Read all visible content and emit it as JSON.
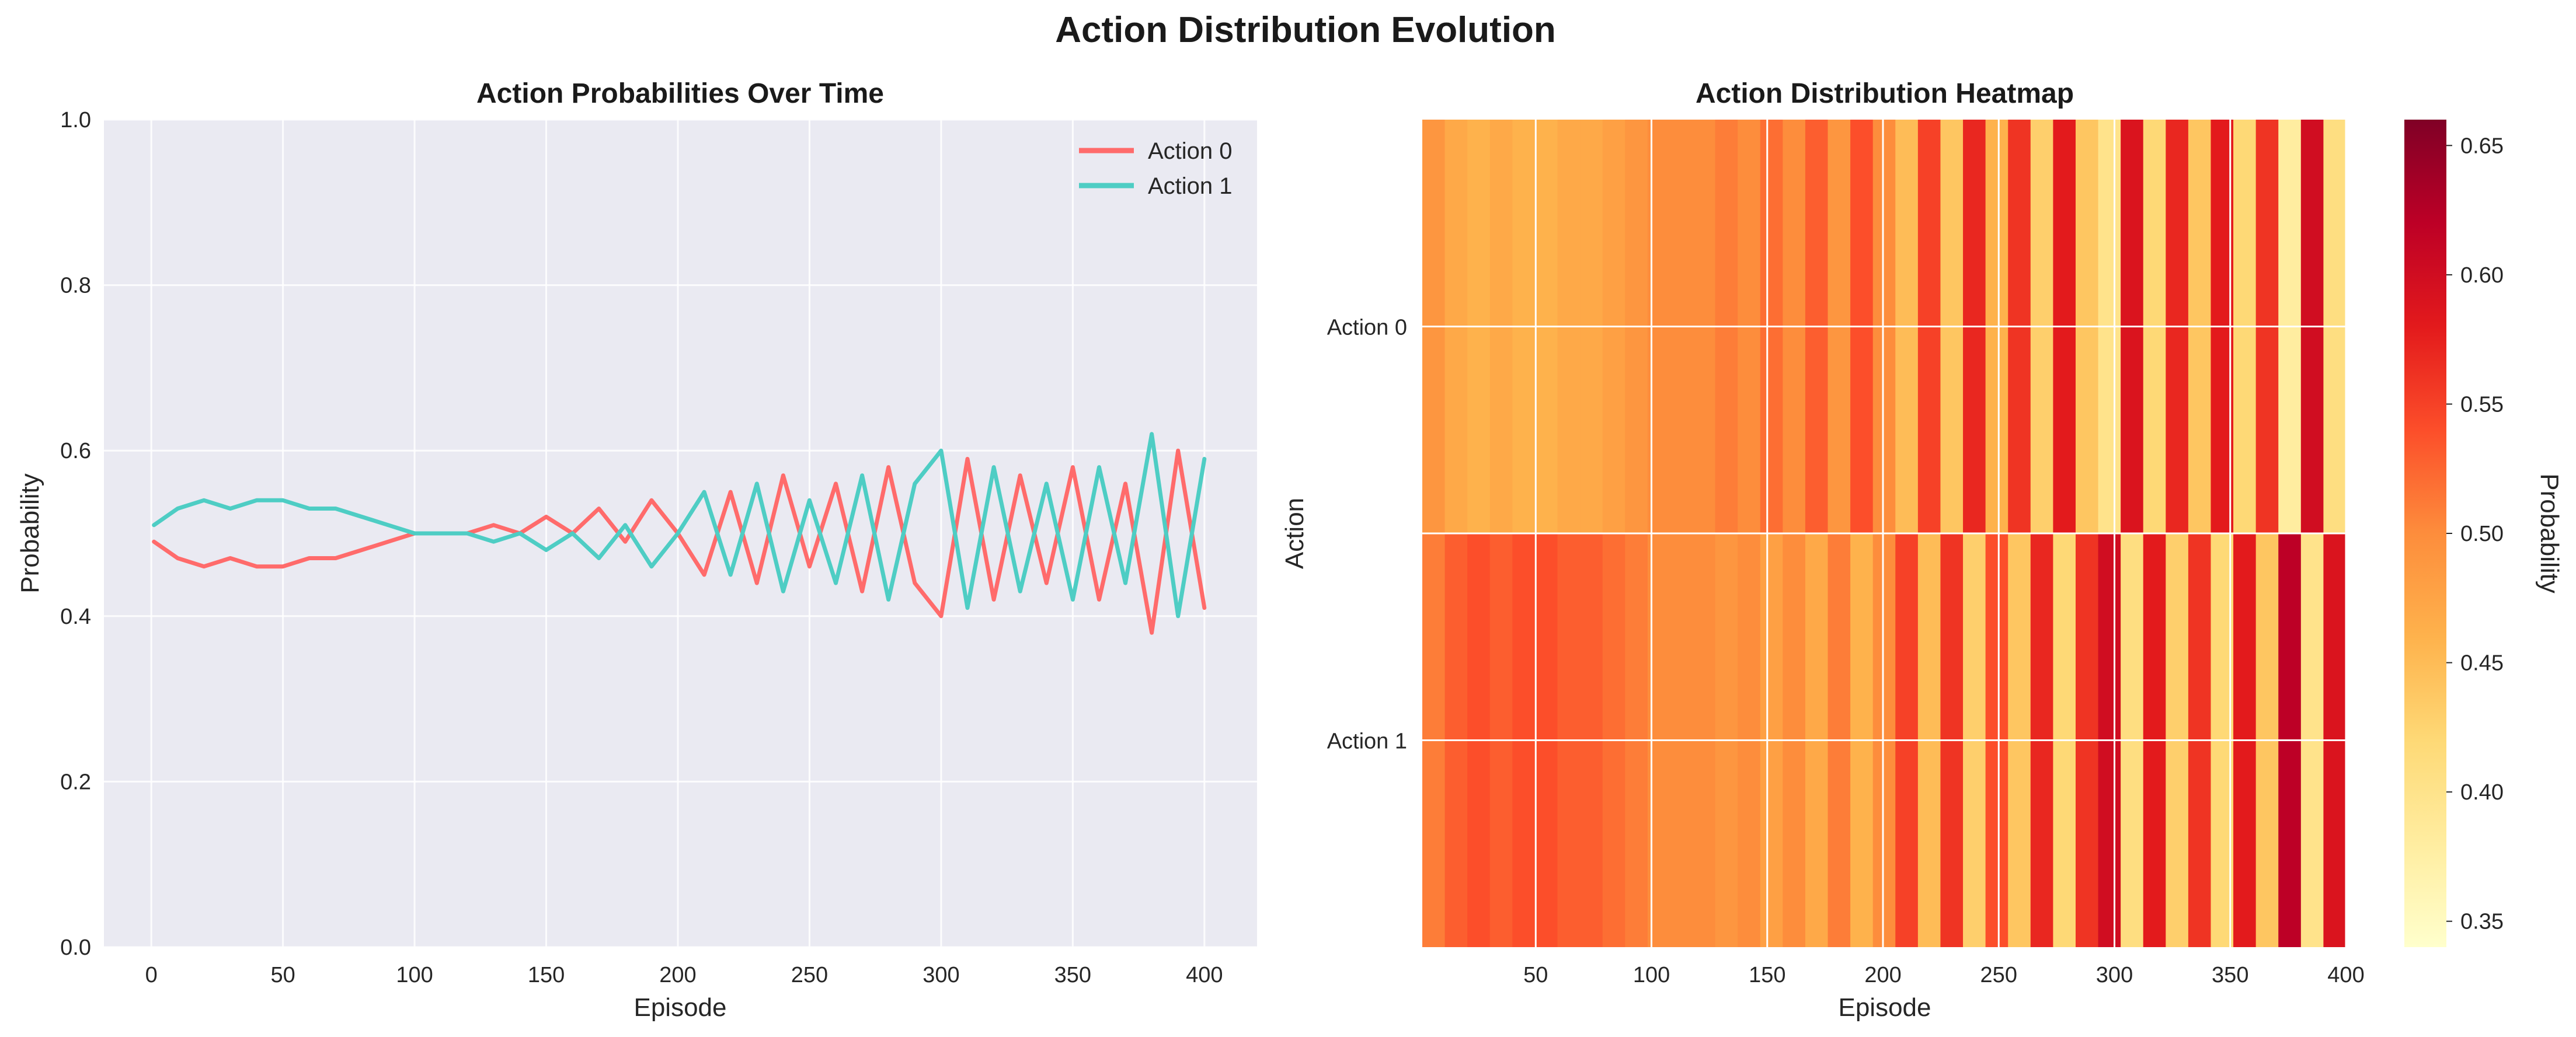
{
  "figure_title": "Action Distribution Evolution",
  "colors": {
    "action0": "#ff6b6b",
    "action1": "#4ecdc4",
    "axes_bg": "#eaeaf2",
    "grid": "#ffffff"
  },
  "chart_data": [
    {
      "type": "line",
      "title": "Action Probabilities Over Time",
      "xlabel": "Episode",
      "ylabel": "Probability",
      "xlim": [
        -18,
        420
      ],
      "ylim": [
        0,
        1
      ],
      "xticks": [
        0,
        50,
        100,
        150,
        200,
        250,
        300,
        350,
        400
      ],
      "yticks": [
        0.0,
        0.2,
        0.4,
        0.6,
        0.8,
        1.0
      ],
      "grid": true,
      "legend": "top-right",
      "series": [
        {
          "name": "Action 0",
          "color": "#ff6b6b",
          "x": [
            1,
            10,
            20,
            30,
            40,
            50,
            60,
            70,
            80,
            90,
            100,
            110,
            120,
            130,
            140,
            150,
            160,
            170,
            180,
            190,
            200,
            210,
            220,
            230,
            240,
            250,
            260,
            270,
            280,
            290,
            300,
            310,
            320,
            330,
            340,
            350,
            360,
            370,
            380,
            390,
            400
          ],
          "y": [
            0.49,
            0.47,
            0.46,
            0.47,
            0.46,
            0.46,
            0.47,
            0.47,
            0.48,
            0.49,
            0.5,
            0.5,
            0.5,
            0.51,
            0.5,
            0.52,
            0.5,
            0.53,
            0.49,
            0.54,
            0.5,
            0.45,
            0.55,
            0.44,
            0.57,
            0.46,
            0.56,
            0.43,
            0.58,
            0.44,
            0.4,
            0.59,
            0.42,
            0.57,
            0.44,
            0.58,
            0.42,
            0.56,
            0.38,
            0.6,
            0.41
          ]
        },
        {
          "name": "Action 1",
          "color": "#4ecdc4",
          "x": [
            1,
            10,
            20,
            30,
            40,
            50,
            60,
            70,
            80,
            90,
            100,
            110,
            120,
            130,
            140,
            150,
            160,
            170,
            180,
            190,
            200,
            210,
            220,
            230,
            240,
            250,
            260,
            270,
            280,
            290,
            300,
            310,
            320,
            330,
            340,
            350,
            360,
            370,
            380,
            390,
            400
          ],
          "y": [
            0.51,
            0.53,
            0.54,
            0.53,
            0.54,
            0.54,
            0.53,
            0.53,
            0.52,
            0.51,
            0.5,
            0.5,
            0.5,
            0.49,
            0.5,
            0.48,
            0.5,
            0.47,
            0.51,
            0.46,
            0.5,
            0.55,
            0.45,
            0.56,
            0.43,
            0.54,
            0.44,
            0.57,
            0.42,
            0.56,
            0.6,
            0.41,
            0.58,
            0.43,
            0.56,
            0.42,
            0.58,
            0.44,
            0.62,
            0.4,
            0.59
          ]
        }
      ]
    },
    {
      "type": "heatmap",
      "title": "Action Distribution Heatmap",
      "xlabel": "Episode",
      "ylabel": "Action",
      "rows": [
        "Action 0",
        "Action 1"
      ],
      "x_range": [
        1,
        400
      ],
      "xticks": [
        50,
        100,
        150,
        200,
        250,
        300,
        350,
        400
      ],
      "colorbar": {
        "label": "Probability",
        "range": [
          0.34,
          0.66
        ],
        "ticks": [
          0.35,
          0.4,
          0.45,
          0.5,
          0.55,
          0.6,
          0.65
        ],
        "colormap": [
          "#ffffcc",
          "#ffeda0",
          "#fed976",
          "#feb24c",
          "#fd8d3c",
          "#fc4e2a",
          "#e31a1c",
          "#bd0026",
          "#800026"
        ]
      },
      "values": [
        [
          0.49,
          0.47,
          0.46,
          0.47,
          0.46,
          0.46,
          0.47,
          0.47,
          0.48,
          0.49,
          0.5,
          0.5,
          0.5,
          0.51,
          0.5,
          0.52,
          0.5,
          0.53,
          0.49,
          0.54,
          0.5,
          0.45,
          0.55,
          0.44,
          0.57,
          0.46,
          0.56,
          0.43,
          0.58,
          0.44,
          0.4,
          0.59,
          0.42,
          0.57,
          0.44,
          0.58,
          0.42,
          0.56,
          0.38,
          0.6,
          0.41
        ],
        [
          0.51,
          0.53,
          0.54,
          0.53,
          0.54,
          0.54,
          0.53,
          0.53,
          0.52,
          0.51,
          0.5,
          0.5,
          0.5,
          0.49,
          0.5,
          0.48,
          0.5,
          0.47,
          0.51,
          0.46,
          0.5,
          0.55,
          0.45,
          0.56,
          0.43,
          0.54,
          0.44,
          0.57,
          0.42,
          0.56,
          0.6,
          0.41,
          0.58,
          0.43,
          0.56,
          0.42,
          0.58,
          0.44,
          0.62,
          0.4,
          0.59
        ]
      ]
    }
  ]
}
